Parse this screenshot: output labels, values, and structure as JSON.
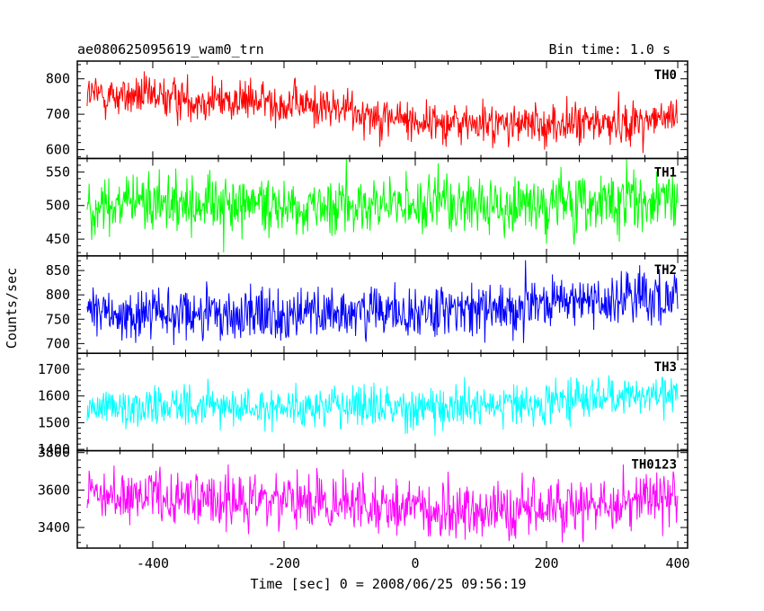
{
  "header": {
    "title": "ae080625095619_wam0_trn",
    "bin_time": "Bin time: 1.0 s"
  },
  "chart_data": {
    "type": "line",
    "title": "ae080625095619_wam0_trn",
    "xlabel": "Time [sec] 0 = 2008/06/25 09:56:19",
    "ylabel": "Counts/sec",
    "xlim": [
      -515,
      415
    ],
    "xticks": [
      -400,
      -200,
      0,
      200,
      400
    ],
    "x_range": [
      -500,
      400
    ],
    "x_step": 1,
    "grid": false,
    "panels": [
      {
        "name": "TH0",
        "color": "#ff0000",
        "ylim": [
          575,
          850
        ],
        "yticks": [
          600,
          700,
          800
        ],
        "trend": {
          "x": [
            -500,
            -300,
            -200,
            -100,
            0,
            100,
            200,
            300,
            400
          ],
          "y": [
            755,
            740,
            732,
            712,
            680,
            672,
            670,
            675,
            690
          ]
        },
        "noise_sd": 30
      },
      {
        "name": "TH1",
        "color": "#00ff00",
        "ylim": [
          425,
          570
        ],
        "yticks": [
          450,
          500,
          550
        ],
        "trend": {
          "x": [
            -500,
            -250,
            0,
            250,
            400
          ],
          "y": [
            500,
            502,
            498,
            503,
            505
          ]
        },
        "noise_sd": 22
      },
      {
        "name": "TH2",
        "color": "#0000ff",
        "ylim": [
          680,
          880
        ],
        "yticks": [
          700,
          750,
          800,
          850
        ],
        "trend": {
          "x": [
            -500,
            -300,
            -100,
            0,
            100,
            200,
            300,
            400
          ],
          "y": [
            762,
            758,
            760,
            765,
            770,
            782,
            790,
            800
          ]
        },
        "noise_sd": 28
      },
      {
        "name": "TH3",
        "color": "#00ffff",
        "ylim": [
          1395,
          1760
        ],
        "yticks": [
          1400,
          1500,
          1600,
          1700
        ],
        "trend": {
          "x": [
            -500,
            -250,
            0,
            200,
            400
          ],
          "y": [
            1565,
            1560,
            1560,
            1575,
            1610
          ]
        },
        "noise_sd": 38
      },
      {
        "name": "TH0123",
        "color": "#ff00ff",
        "ylim": [
          3290,
          3810
        ],
        "yticks": [
          3400,
          3600,
          3800
        ],
        "trend": {
          "x": [
            -500,
            -300,
            -100,
            0,
            100,
            200,
            300,
            400
          ],
          "y": [
            3560,
            3545,
            3520,
            3490,
            3470,
            3490,
            3520,
            3580
          ]
        },
        "noise_sd": 75
      }
    ]
  }
}
